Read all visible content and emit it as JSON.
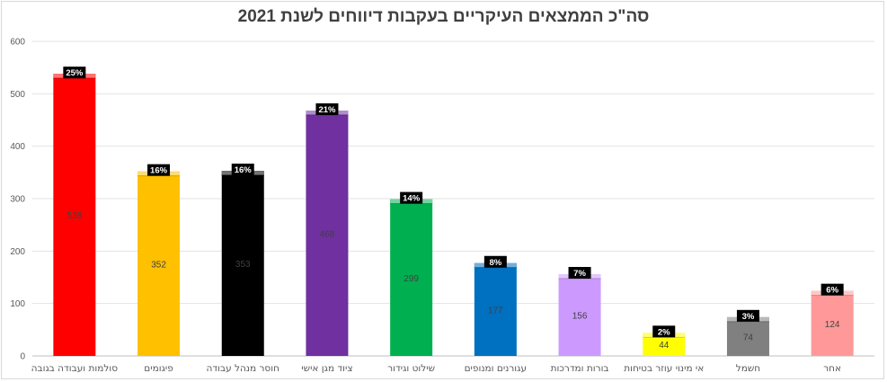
{
  "chart_data": {
    "type": "bar",
    "title": "סה\"כ הממצאים העיקריים בעקבות דיווחים לשנת 2021",
    "xlabel": "",
    "ylabel": "",
    "ylim": [
      0,
      600
    ],
    "yticks": [
      0,
      100,
      200,
      300,
      400,
      500,
      600
    ],
    "grid": true,
    "legend": "none",
    "categories": [
      "סולמות ועבודה בגובה",
      "פיגומים",
      "חוסר מנהל עבודה",
      "ציוד מגן אישי",
      "שילוט וגידור",
      "עגורנים ומנופים",
      "בורות ומדרכות",
      "אי מינוי עוזר בטיחות",
      "חשמל",
      "אחר"
    ],
    "values": [
      538,
      352,
      353,
      468,
      299,
      177,
      156,
      44,
      74,
      124
    ],
    "value_labels": [
      "538",
      "352",
      "353",
      "468",
      "299",
      "177",
      "156",
      "44",
      "74",
      "124"
    ],
    "percent_labels": [
      "25%",
      "16%",
      "16%",
      "21%",
      "14%",
      "8%",
      "7%",
      "2%",
      "3%",
      "6%"
    ],
    "colors": [
      "#ff0000",
      "#ffc000",
      "#000000",
      "#7030a0",
      "#00b050",
      "#0070c0",
      "#cc99ff",
      "#ffff00",
      "#808080",
      "#ff9999"
    ]
  }
}
